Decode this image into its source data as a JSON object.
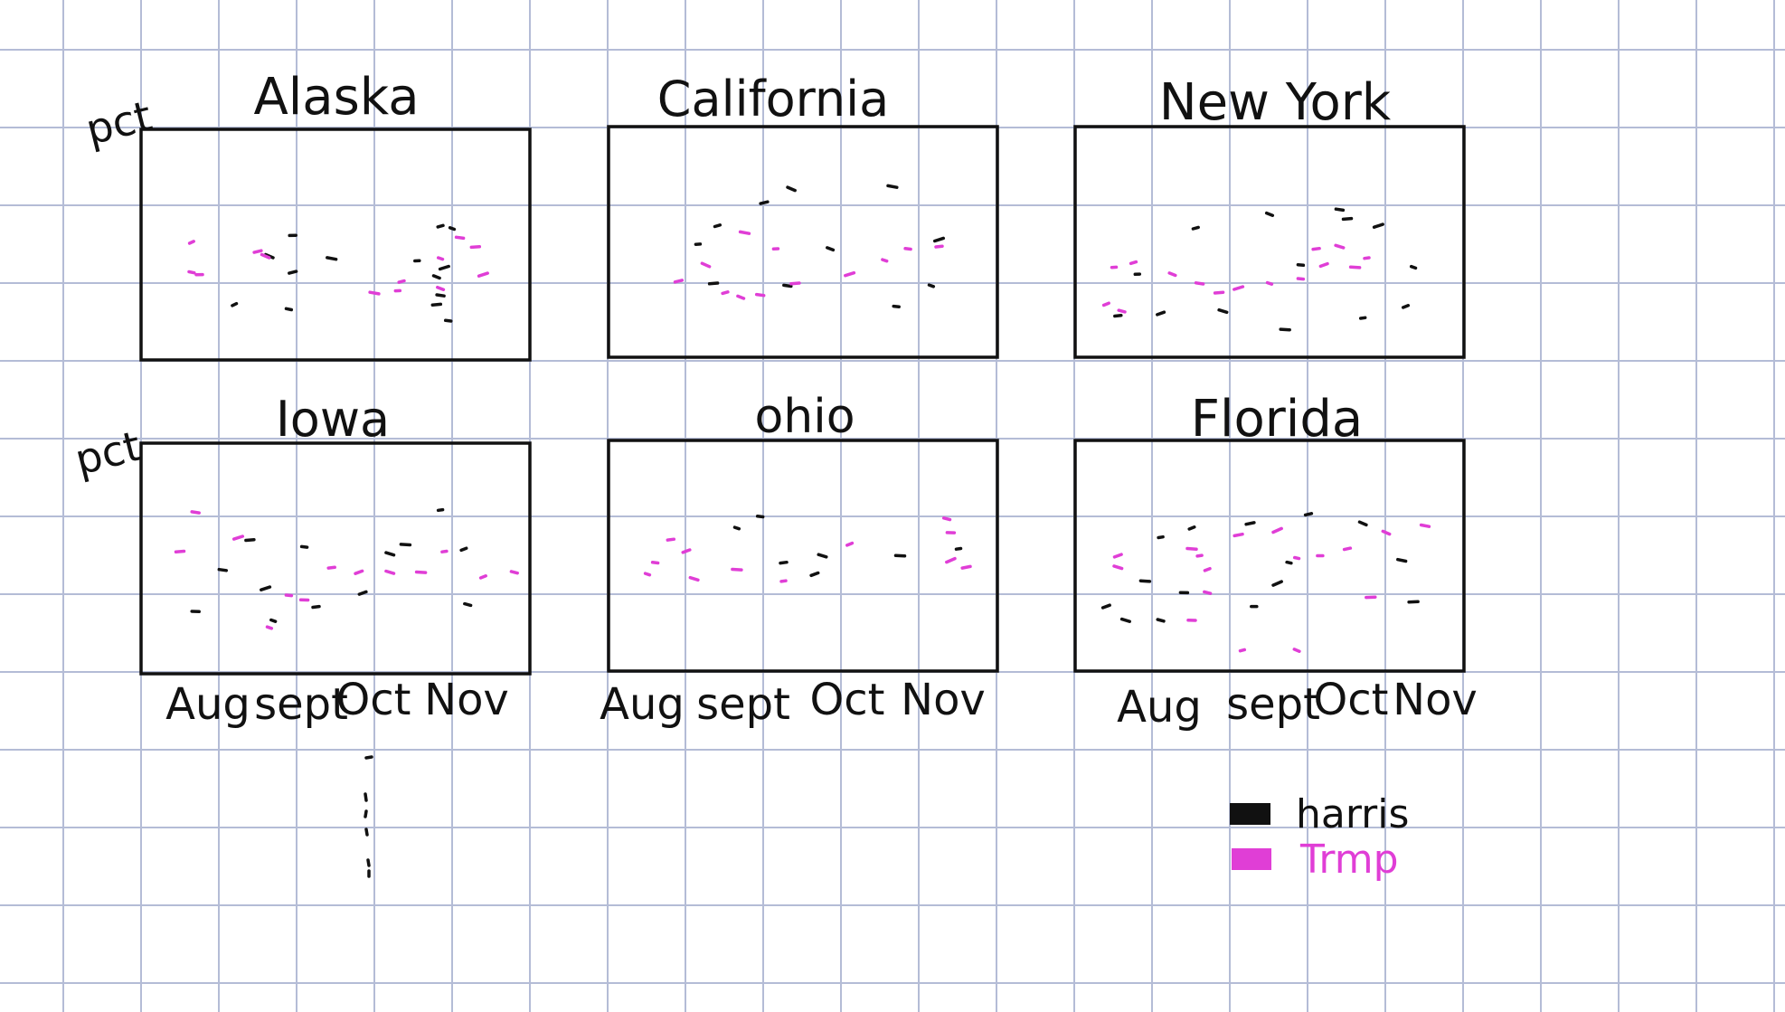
{
  "sketch": {
    "y_label": "pct",
    "panels": [
      {
        "title": "Alaska",
        "harris": [
          [
            0.24,
            0.76
          ],
          [
            0.38,
            0.78
          ],
          [
            0.39,
            0.46
          ],
          [
            0.39,
            0.62
          ],
          [
            0.33,
            0.55
          ],
          [
            0.49,
            0.56
          ],
          [
            0.71,
            0.57
          ],
          [
            0.77,
            0.42
          ],
          [
            0.76,
            0.64
          ],
          [
            0.77,
            0.72
          ],
          [
            0.76,
            0.76
          ],
          [
            0.78,
            0.6
          ],
          [
            0.8,
            0.43
          ],
          [
            0.79,
            0.83
          ]
        ],
        "trump": [
          [
            0.13,
            0.49
          ],
          [
            0.13,
            0.62
          ],
          [
            0.15,
            0.63
          ],
          [
            0.3,
            0.53
          ],
          [
            0.32,
            0.55
          ],
          [
            0.6,
            0.71
          ],
          [
            0.66,
            0.7
          ],
          [
            0.67,
            0.66
          ],
          [
            0.77,
            0.69
          ],
          [
            0.82,
            0.47
          ],
          [
            0.86,
            0.51
          ],
          [
            0.88,
            0.63
          ],
          [
            0.77,
            0.56
          ]
        ]
      },
      {
        "title": "California",
        "harris": [
          [
            0.4,
            0.33
          ],
          [
            0.47,
            0.27
          ],
          [
            0.73,
            0.26
          ],
          [
            0.23,
            0.51
          ],
          [
            0.28,
            0.43
          ],
          [
            0.57,
            0.53
          ],
          [
            0.46,
            0.69
          ],
          [
            0.27,
            0.68
          ],
          [
            0.85,
            0.49
          ],
          [
            0.83,
            0.69
          ],
          [
            0.74,
            0.78
          ]
        ],
        "trump": [
          [
            0.18,
            0.67
          ],
          [
            0.25,
            0.6
          ],
          [
            0.35,
            0.46
          ],
          [
            0.43,
            0.53
          ],
          [
            0.3,
            0.72
          ],
          [
            0.34,
            0.74
          ],
          [
            0.39,
            0.73
          ],
          [
            0.48,
            0.68
          ],
          [
            0.62,
            0.64
          ],
          [
            0.71,
            0.58
          ],
          [
            0.77,
            0.53
          ],
          [
            0.85,
            0.52
          ]
        ]
      },
      {
        "title": "New York",
        "harris": [
          [
            0.16,
            0.64
          ],
          [
            0.31,
            0.44
          ],
          [
            0.5,
            0.38
          ],
          [
            0.68,
            0.36
          ],
          [
            0.7,
            0.4
          ],
          [
            0.78,
            0.43
          ],
          [
            0.87,
            0.61
          ],
          [
            0.58,
            0.6
          ],
          [
            0.11,
            0.82
          ],
          [
            0.22,
            0.81
          ],
          [
            0.38,
            0.8
          ],
          [
            0.54,
            0.88
          ],
          [
            0.74,
            0.83
          ],
          [
            0.85,
            0.78
          ]
        ],
        "trump": [
          [
            0.1,
            0.61
          ],
          [
            0.15,
            0.59
          ],
          [
            0.25,
            0.64
          ],
          [
            0.32,
            0.68
          ],
          [
            0.37,
            0.72
          ],
          [
            0.42,
            0.7
          ],
          [
            0.5,
            0.68
          ],
          [
            0.58,
            0.66
          ],
          [
            0.62,
            0.53
          ],
          [
            0.64,
            0.6
          ],
          [
            0.68,
            0.52
          ],
          [
            0.72,
            0.61
          ],
          [
            0.75,
            0.57
          ],
          [
            0.08,
            0.77
          ],
          [
            0.12,
            0.8
          ]
        ]
      },
      {
        "title": "Iowa",
        "harris": [
          [
            0.21,
            0.55
          ],
          [
            0.28,
            0.42
          ],
          [
            0.32,
            0.63
          ],
          [
            0.34,
            0.77
          ],
          [
            0.42,
            0.45
          ],
          [
            0.45,
            0.71
          ],
          [
            0.57,
            0.65
          ],
          [
            0.64,
            0.48
          ],
          [
            0.68,
            0.44
          ],
          [
            0.77,
            0.29
          ],
          [
            0.83,
            0.46
          ],
          [
            0.84,
            0.7
          ],
          [
            0.14,
            0.73
          ]
        ],
        "trump": [
          [
            0.14,
            0.3
          ],
          [
            0.1,
            0.47
          ],
          [
            0.25,
            0.41
          ],
          [
            0.33,
            0.8
          ],
          [
            0.38,
            0.66
          ],
          [
            0.49,
            0.54
          ],
          [
            0.56,
            0.56
          ],
          [
            0.64,
            0.56
          ],
          [
            0.72,
            0.56
          ],
          [
            0.78,
            0.47
          ],
          [
            0.88,
            0.58
          ],
          [
            0.96,
            0.56
          ],
          [
            0.42,
            0.68
          ]
        ]
      },
      {
        "title": "ohio",
        "harris": [
          [
            0.33,
            0.38
          ],
          [
            0.39,
            0.33
          ],
          [
            0.45,
            0.53
          ],
          [
            0.53,
            0.58
          ],
          [
            0.55,
            0.5
          ],
          [
            0.75,
            0.5
          ],
          [
            0.9,
            0.47
          ]
        ],
        "trump": [
          [
            0.1,
            0.58
          ],
          [
            0.12,
            0.53
          ],
          [
            0.16,
            0.43
          ],
          [
            0.2,
            0.48
          ],
          [
            0.22,
            0.6
          ],
          [
            0.33,
            0.56
          ],
          [
            0.45,
            0.61
          ],
          [
            0.62,
            0.45
          ],
          [
            0.87,
            0.34
          ],
          [
            0.88,
            0.4
          ],
          [
            0.92,
            0.55
          ],
          [
            0.88,
            0.52
          ]
        ]
      },
      {
        "title": "Florida",
        "harris": [
          [
            0.08,
            0.72
          ],
          [
            0.13,
            0.78
          ],
          [
            0.18,
            0.61
          ],
          [
            0.22,
            0.42
          ],
          [
            0.3,
            0.38
          ],
          [
            0.22,
            0.78
          ],
          [
            0.28,
            0.66
          ],
          [
            0.45,
            0.36
          ],
          [
            0.52,
            0.62
          ],
          [
            0.55,
            0.53
          ],
          [
            0.46,
            0.72
          ],
          [
            0.6,
            0.32
          ],
          [
            0.74,
            0.36
          ],
          [
            0.84,
            0.52
          ],
          [
            0.87,
            0.7
          ]
        ],
        "trump": [
          [
            0.11,
            0.5
          ],
          [
            0.11,
            0.55
          ],
          [
            0.3,
            0.47
          ],
          [
            0.32,
            0.5
          ],
          [
            0.34,
            0.56
          ],
          [
            0.34,
            0.66
          ],
          [
            0.3,
            0.78
          ],
          [
            0.42,
            0.41
          ],
          [
            0.52,
            0.39
          ],
          [
            0.57,
            0.51
          ],
          [
            0.63,
            0.5
          ],
          [
            0.7,
            0.47
          ],
          [
            0.8,
            0.4
          ],
          [
            0.9,
            0.37
          ],
          [
            0.76,
            0.68
          ],
          [
            0.43,
            0.91
          ],
          [
            0.57,
            0.91
          ]
        ]
      }
    ],
    "x_labels_col1": [
      "Aug",
      "sept",
      "Oct",
      "Nov"
    ],
    "x_labels_col2": [
      "Aug",
      "sept",
      "Oct",
      "Nov"
    ],
    "x_labels_col3": [
      "Aug",
      "sept",
      "Oct",
      "Nov"
    ],
    "legend": {
      "harris_label": "harris",
      "trump_label": "Trmp",
      "harris_color": "#111111",
      "trump_color": "#e03ed6"
    }
  }
}
